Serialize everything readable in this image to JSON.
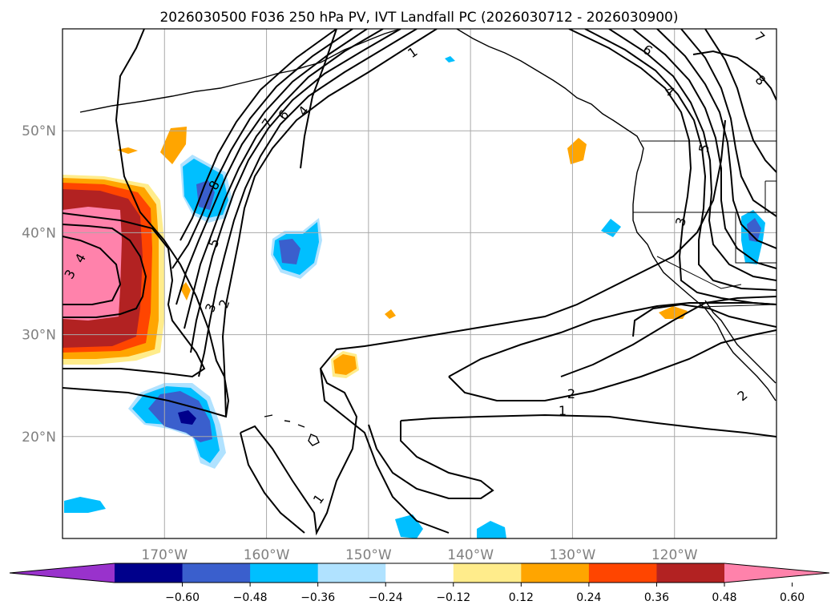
{
  "chart_data": {
    "type": "map-contour",
    "title": "2026030500 F036 250 hPa PV, IVT Landfall PC (2026030712 - 2026030900)",
    "lon_ticks": [
      {
        "value": -170,
        "label": "170°W"
      },
      {
        "value": -160,
        "label": "160°W"
      },
      {
        "value": -150,
        "label": "150°W"
      },
      {
        "value": -140,
        "label": "140°W"
      },
      {
        "value": -130,
        "label": "130°W"
      },
      {
        "value": -120,
        "label": "120°W"
      }
    ],
    "lat_ticks": [
      {
        "value": 20,
        "label": "20°N"
      },
      {
        "value": 30,
        "label": "30°N"
      },
      {
        "value": 40,
        "label": "40°N"
      },
      {
        "value": 50,
        "label": "50°N"
      }
    ],
    "lon_range": [
      -180,
      -110
    ],
    "lat_range": [
      10,
      60
    ],
    "contour_labels": [
      "1",
      "2",
      "3",
      "4",
      "5",
      "6",
      "7",
      "8"
    ],
    "colorbar": {
      "ticks": [
        "−0.60",
        "−0.48",
        "−0.36",
        "−0.24",
        "−0.12",
        "0.12",
        "0.24",
        "0.36",
        "0.48",
        "0.60"
      ],
      "colors": [
        "#9932cc",
        "#00008b",
        "#3a5fcd",
        "#00bfff",
        "#b0e2ff",
        "#ffffff",
        "#ffec8b",
        "#ffa500",
        "#ff4500",
        "#b22222",
        "#ff82ab"
      ],
      "extend": "both"
    }
  }
}
